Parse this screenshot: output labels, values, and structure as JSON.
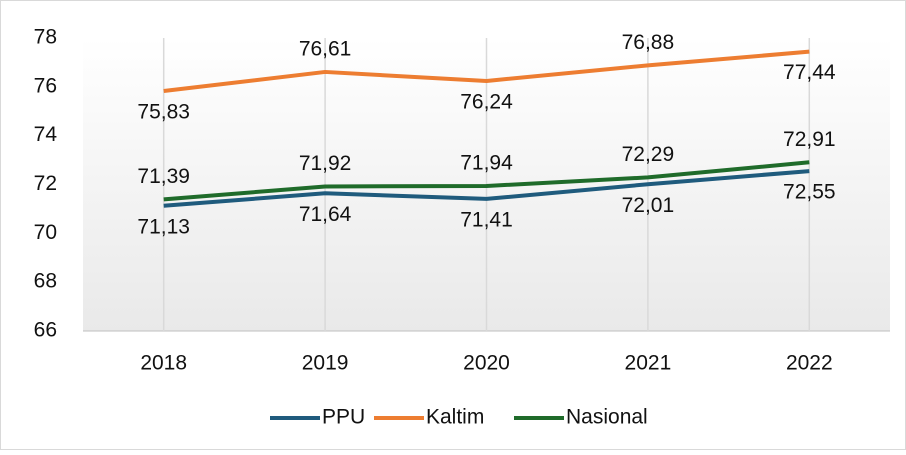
{
  "chart_data": {
    "type": "line",
    "categories": [
      "2018",
      "2019",
      "2020",
      "2021",
      "2022"
    ],
    "series": [
      {
        "name": "PPU",
        "color": "#1f5b7d",
        "values": [
          71.13,
          71.64,
          71.41,
          72.01,
          72.55
        ],
        "value_labels": [
          "71,13",
          "71,64",
          "71,41",
          "72,01",
          "72,55"
        ]
      },
      {
        "name": "Kaltim",
        "color": "#ed7d31",
        "values": [
          75.83,
          76.61,
          76.24,
          76.88,
          77.44
        ],
        "value_labels": [
          "75,83",
          "76,61",
          "76,24",
          "76,88",
          "77,44"
        ]
      },
      {
        "name": "Nasional",
        "color": "#1f6b2a",
        "values": [
          71.39,
          71.92,
          71.94,
          72.29,
          72.91
        ],
        "value_labels": [
          "71,39",
          "71,92",
          "71,94",
          "72,29",
          "72,91"
        ]
      }
    ],
    "ylim": [
      66,
      78
    ],
    "yticks": [
      66,
      68,
      70,
      72,
      74,
      76,
      78
    ],
    "grid": true
  }
}
